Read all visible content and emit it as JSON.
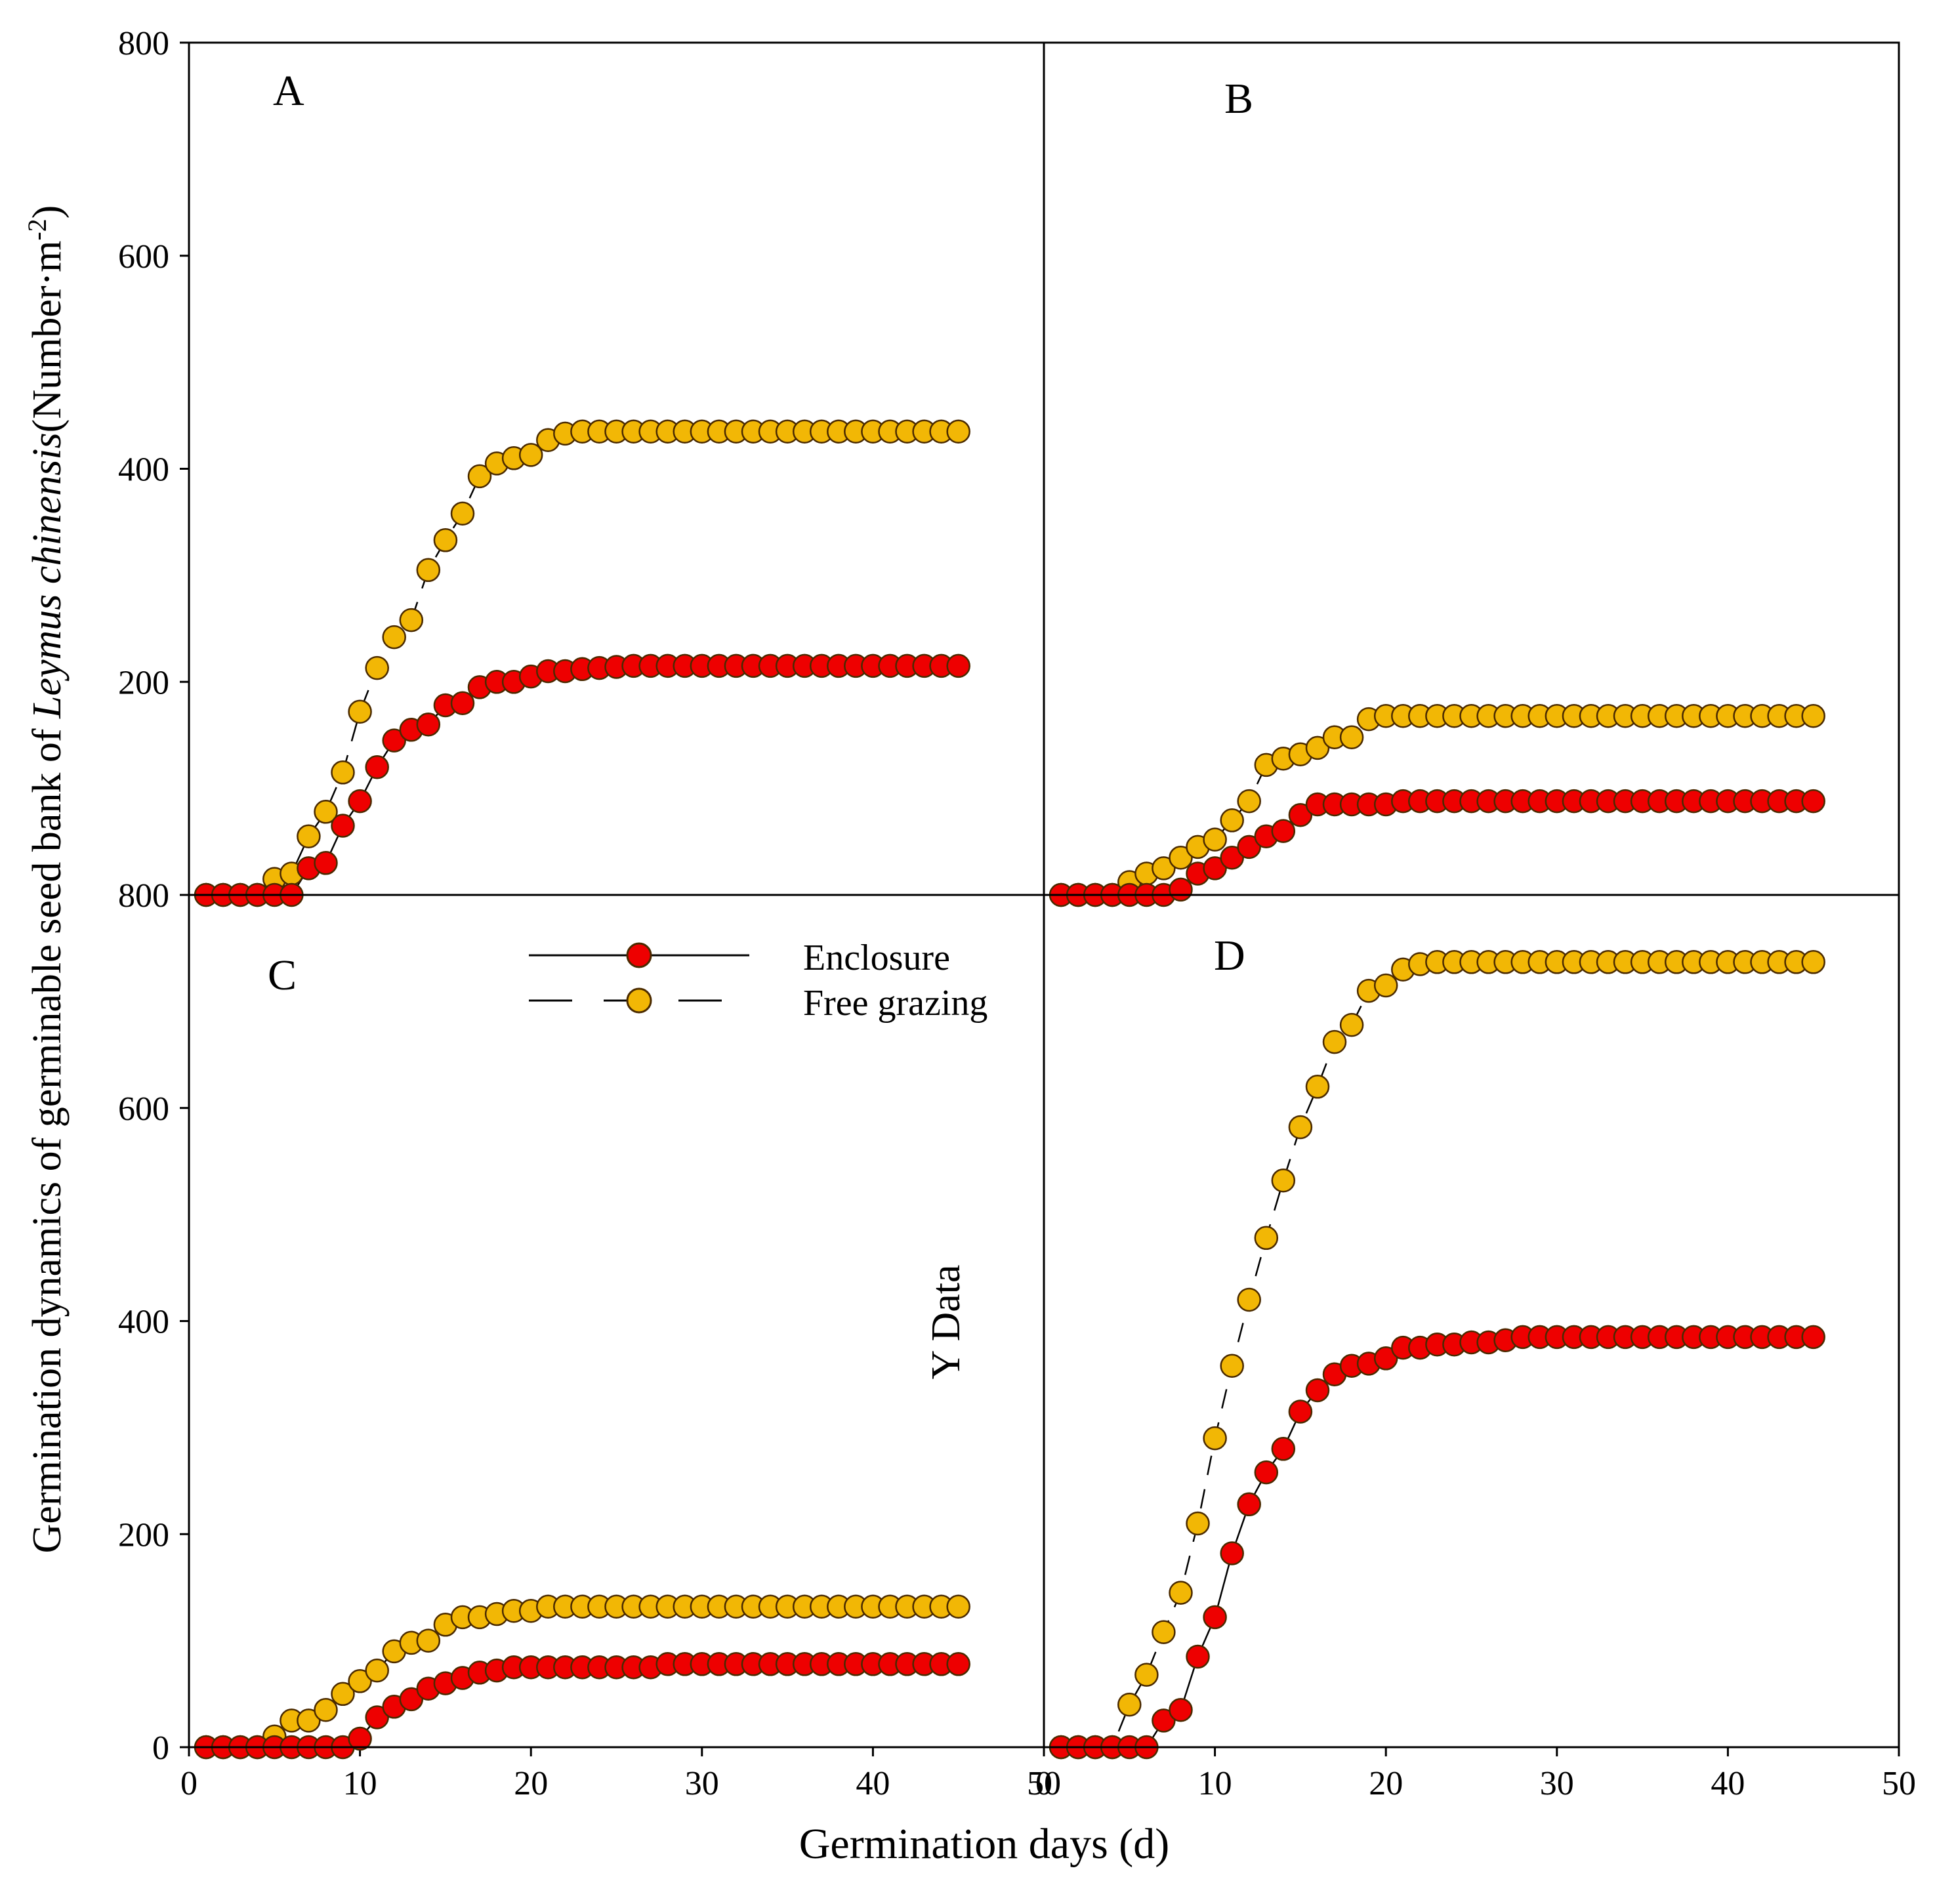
{
  "figure": {
    "ylabel_prefix": "Germination dynamics of germinable seed bank of ",
    "ylabel_species": "Leymus chinensis",
    "ylabel_unit_open": "(Number·m",
    "ylabel_unit_sup": "-2",
    "ylabel_unit_close": ")",
    "xlabel": "Germination days (d)",
    "stray_label": "Y Data"
  },
  "legend": {
    "entries": [
      {
        "label": "Enclosure",
        "line": "solid",
        "color": "#ee0000"
      },
      {
        "label": "Free grazing",
        "line": "dashed",
        "color": "#f2b705"
      }
    ]
  },
  "chart_data": [
    {
      "type": "line",
      "panel": "A",
      "xlim": [
        0,
        50
      ],
      "ylim": [
        0,
        800
      ],
      "x": [
        1,
        2,
        3,
        4,
        5,
        6,
        7,
        8,
        9,
        10,
        11,
        12,
        13,
        14,
        15,
        16,
        17,
        18,
        19,
        20,
        21,
        22,
        23,
        24,
        25,
        26,
        27,
        28,
        29,
        30,
        31,
        32,
        33,
        34,
        35,
        36,
        37,
        38,
        39,
        40,
        41,
        42,
        43,
        44,
        45
      ],
      "series": [
        {
          "name": "Enclosure",
          "values": [
            0,
            0,
            0,
            0,
            0,
            0,
            25,
            30,
            65,
            88,
            120,
            145,
            155,
            160,
            178,
            180,
            195,
            200,
            200,
            205,
            210,
            210,
            212,
            213,
            214,
            215,
            215,
            215,
            215,
            215,
            215,
            215,
            215,
            215,
            215,
            215,
            215,
            215,
            215,
            215,
            215,
            215,
            215,
            215,
            215
          ]
        },
        {
          "name": "Free grazing",
          "values": [
            0,
            0,
            0,
            0,
            15,
            20,
            55,
            78,
            115,
            172,
            213,
            242,
            258,
            305,
            333,
            358,
            393,
            405,
            410,
            413,
            427,
            433,
            435,
            435,
            435,
            435,
            435,
            435,
            435,
            435,
            435,
            435,
            435,
            435,
            435,
            435,
            435,
            435,
            435,
            435,
            435,
            435,
            435,
            435,
            435
          ]
        }
      ]
    },
    {
      "type": "line",
      "panel": "B",
      "xlim": [
        0,
        50
      ],
      "ylim": [
        0,
        800
      ],
      "x": [
        1,
        2,
        3,
        4,
        5,
        6,
        7,
        8,
        9,
        10,
        11,
        12,
        13,
        14,
        15,
        16,
        17,
        18,
        19,
        20,
        21,
        22,
        23,
        24,
        25,
        26,
        27,
        28,
        29,
        30,
        31,
        32,
        33,
        34,
        35,
        36,
        37,
        38,
        39,
        40,
        41,
        42,
        43,
        44,
        45
      ],
      "series": [
        {
          "name": "Enclosure",
          "values": [
            0,
            0,
            0,
            0,
            0,
            0,
            0,
            5,
            20,
            25,
            35,
            45,
            55,
            60,
            75,
            85,
            85,
            85,
            85,
            85,
            88,
            88,
            88,
            88,
            88,
            88,
            88,
            88,
            88,
            88,
            88,
            88,
            88,
            88,
            88,
            88,
            88,
            88,
            88,
            88,
            88,
            88,
            88,
            88,
            88
          ]
        },
        {
          "name": "Free grazing",
          "values": [
            0,
            0,
            0,
            0,
            12,
            20,
            25,
            35,
            45,
            52,
            70,
            88,
            122,
            128,
            132,
            138,
            148,
            148,
            165,
            168,
            168,
            168,
            168,
            168,
            168,
            168,
            168,
            168,
            168,
            168,
            168,
            168,
            168,
            168,
            168,
            168,
            168,
            168,
            168,
            168,
            168,
            168,
            168,
            168,
            168
          ]
        }
      ]
    },
    {
      "type": "line",
      "panel": "C",
      "xlim": [
        0,
        50
      ],
      "ylim": [
        0,
        800
      ],
      "x": [
        1,
        2,
        3,
        4,
        5,
        6,
        7,
        8,
        9,
        10,
        11,
        12,
        13,
        14,
        15,
        16,
        17,
        18,
        19,
        20,
        21,
        22,
        23,
        24,
        25,
        26,
        27,
        28,
        29,
        30,
        31,
        32,
        33,
        34,
        35,
        36,
        37,
        38,
        39,
        40,
        41,
        42,
        43,
        44,
        45
      ],
      "series": [
        {
          "name": "Enclosure",
          "values": [
            0,
            0,
            0,
            0,
            0,
            0,
            0,
            0,
            0,
            8,
            28,
            38,
            45,
            55,
            60,
            65,
            70,
            72,
            75,
            75,
            75,
            75,
            75,
            75,
            75,
            75,
            75,
            78,
            78,
            78,
            78,
            78,
            78,
            78,
            78,
            78,
            78,
            78,
            78,
            78,
            78,
            78,
            78,
            78,
            78
          ]
        },
        {
          "name": "Free grazing",
          "values": [
            0,
            0,
            0,
            0,
            10,
            25,
            25,
            35,
            50,
            62,
            72,
            90,
            98,
            100,
            115,
            122,
            122,
            125,
            128,
            128,
            132,
            132,
            132,
            132,
            132,
            132,
            132,
            132,
            132,
            132,
            132,
            132,
            132,
            132,
            132,
            132,
            132,
            132,
            132,
            132,
            132,
            132,
            132,
            132,
            132
          ]
        }
      ]
    },
    {
      "type": "line",
      "panel": "D",
      "xlim": [
        0,
        50
      ],
      "ylim": [
        0,
        800
      ],
      "x": [
        1,
        2,
        3,
        4,
        5,
        6,
        7,
        8,
        9,
        10,
        11,
        12,
        13,
        14,
        15,
        16,
        17,
        18,
        19,
        20,
        21,
        22,
        23,
        24,
        25,
        26,
        27,
        28,
        29,
        30,
        31,
        32,
        33,
        34,
        35,
        36,
        37,
        38,
        39,
        40,
        41,
        42,
        43,
        44,
        45
      ],
      "series": [
        {
          "name": "Enclosure",
          "values": [
            0,
            0,
            0,
            0,
            0,
            0,
            25,
            35,
            85,
            122,
            182,
            228,
            258,
            280,
            315,
            335,
            350,
            358,
            360,
            365,
            375,
            375,
            378,
            378,
            380,
            380,
            382,
            385,
            385,
            385,
            385,
            385,
            385,
            385,
            385,
            385,
            385,
            385,
            385,
            385,
            385,
            385,
            385,
            385,
            385
          ]
        },
        {
          "name": "Free grazing",
          "values": [
            0,
            0,
            0,
            0,
            40,
            68,
            108,
            145,
            210,
            290,
            358,
            420,
            478,
            532,
            582,
            620,
            662,
            678,
            710,
            715,
            730,
            735,
            737,
            737,
            737,
            737,
            737,
            737,
            737,
            737,
            737,
            737,
            737,
            737,
            737,
            737,
            737,
            737,
            737,
            737,
            737,
            737,
            737,
            737,
            737
          ]
        }
      ]
    }
  ],
  "panels_text": [
    {
      "label": "A",
      "xticks": [],
      "yticks": [
        "800",
        "600",
        "400",
        "200"
      ]
    },
    {
      "label": "B",
      "xticks": [],
      "yticks": []
    },
    {
      "label": "C",
      "xticks": [
        "0",
        "10",
        "20",
        "30",
        "40",
        "50"
      ],
      "yticks": [
        "800",
        "600",
        "400",
        "200",
        "0"
      ]
    },
    {
      "label": "D",
      "xticks": [
        "0",
        "10",
        "20",
        "30",
        "40",
        "50"
      ],
      "yticks": []
    }
  ],
  "colors": {
    "enclosure_fill": "#ee0000",
    "free_grazing_fill": "#f2b705",
    "marker_stroke": "#4a2a00",
    "axis": "#000000"
  }
}
